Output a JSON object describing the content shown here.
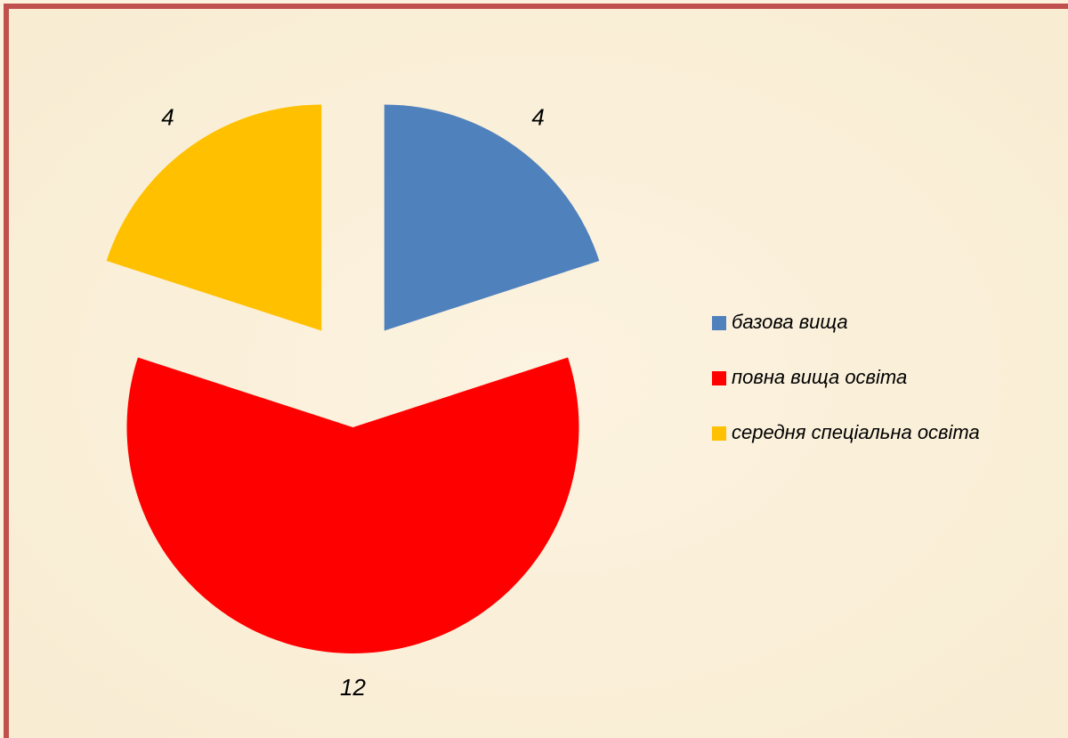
{
  "chart_data": {
    "type": "pie",
    "categories": [
      "базова вища",
      "повна вища освіта",
      "середня спеціальна освіта"
    ],
    "values": [
      4,
      12,
      4
    ],
    "colors": [
      "#4f81bd",
      "#ff0000",
      "#ffc000"
    ],
    "legend": "right"
  }
}
